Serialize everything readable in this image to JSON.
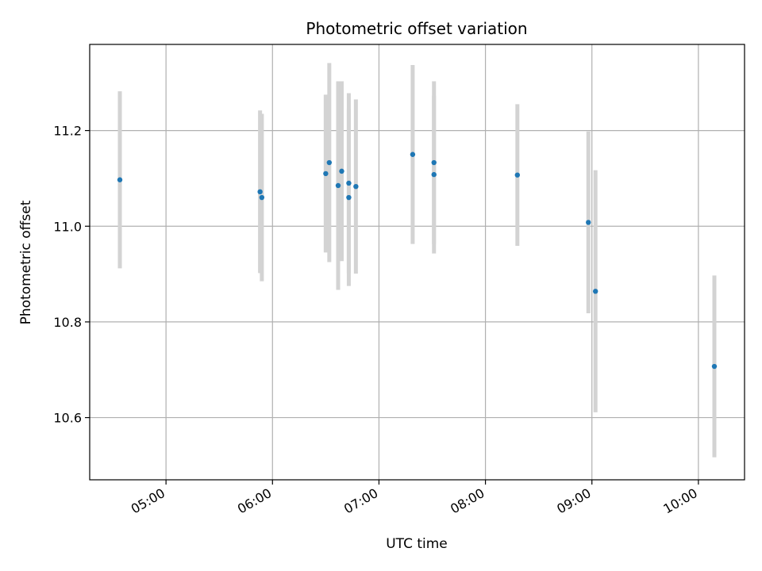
{
  "chart_data": {
    "type": "scatter",
    "title": "Photometric offset variation",
    "xlabel": "UTC time",
    "ylabel": "Photometric offset",
    "x_ticks": [
      "05:00",
      "06:00",
      "07:00",
      "08:00",
      "09:00",
      "10:00"
    ],
    "y_ticks": [
      "10.6",
      "10.8",
      "11.0",
      "11.2"
    ],
    "xlim": [
      "04:17",
      "10:26"
    ],
    "ylim": [
      10.47,
      11.38
    ],
    "grid": true,
    "colors": {
      "point": "#1f77b4",
      "errorbar": "#d3d3d3",
      "grid": "#b0b0b0"
    },
    "points": [
      {
        "time": "04:34",
        "y": 11.097,
        "yerr": 0.185
      },
      {
        "time": "05:53",
        "y": 11.072,
        "yerr": 0.17
      },
      {
        "time": "05:54",
        "y": 11.06,
        "yerr": 0.175
      },
      {
        "time": "06:30",
        "y": 11.11,
        "yerr": 0.165
      },
      {
        "time": "06:32",
        "y": 11.133,
        "yerr": 0.208
      },
      {
        "time": "06:37",
        "y": 11.085,
        "yerr": 0.218
      },
      {
        "time": "06:39",
        "y": 11.115,
        "yerr": 0.188
      },
      {
        "time": "06:43",
        "y": 11.09,
        "yerr": 0.188
      },
      {
        "time": "06:43",
        "y": 11.06,
        "yerr": 0.185
      },
      {
        "time": "06:47",
        "y": 11.083,
        "yerr": 0.182
      },
      {
        "time": "07:19",
        "y": 11.15,
        "yerr": 0.187
      },
      {
        "time": "07:31",
        "y": 11.133,
        "yerr": 0.17
      },
      {
        "time": "07:31",
        "y": 11.108,
        "yerr": 0.165
      },
      {
        "time": "08:18",
        "y": 11.107,
        "yerr": 0.148
      },
      {
        "time": "08:58",
        "y": 11.008,
        "yerr": 0.19
      },
      {
        "time": "09:02",
        "y": 10.864,
        "yerr": 0.253
      },
      {
        "time": "10:09",
        "y": 10.707,
        "yerr": 0.19
      }
    ]
  }
}
